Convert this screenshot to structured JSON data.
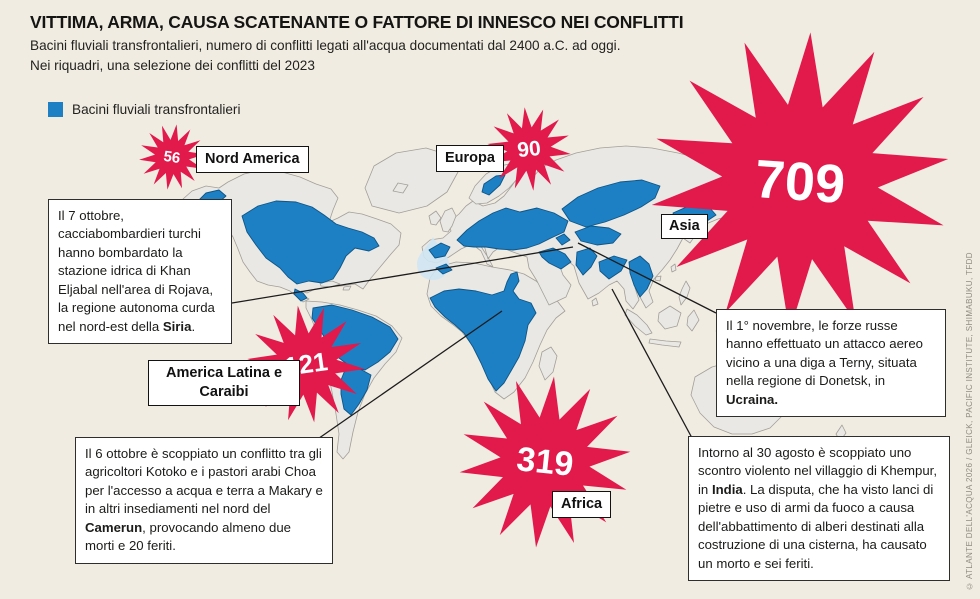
{
  "header": {
    "title": "VITTIMA, ARMA, CAUSA SCATENANTE O FATTORE DI INNESCO NEI CONFLITTI",
    "subtitle1": "Bacini fluviali transfrontalieri, numero di conflitti legati all'acqua documentati dal 2400 a.C. ad oggi.",
    "subtitle2": "Nei riquadri, una selezione dei conflitti del 2023"
  },
  "legend": {
    "label": "Bacini fluviali transfrontalieri"
  },
  "regions": [
    {
      "name": "Nord America",
      "conflicts": "56"
    },
    {
      "name": "Europa",
      "conflicts": "90"
    },
    {
      "name": "Asia",
      "conflicts": "709"
    },
    {
      "name": "America Latina e Caraibi",
      "conflicts": "121"
    },
    {
      "name": "Africa",
      "conflicts": "319"
    }
  ],
  "callouts": {
    "siria": [
      {
        "text": "Il 7 ottobre, cacciabombardieri turchi hanno bombardato la stazione idrica di Khan Eljabal nell'area di Rojava, la regione autonoma curda nel nord-est della "
      },
      {
        "text": "Siria",
        "bold": true
      },
      {
        "text": "."
      }
    ],
    "camerun": [
      {
        "text": "Il 6 ottobre è scoppiato un conflitto tra gli agricoltori Kotoko e i pastori arabi Choa per l'accesso a acqua e terra a Makary e in altri insediamenti nel nord del "
      },
      {
        "text": "Camerun",
        "bold": true
      },
      {
        "text": ", provocando almeno due morti e 20 feriti."
      }
    ],
    "ucraina": [
      {
        "text": "Il 1° novembre, le forze russe hanno effettuato un attacco aereo vicino a una diga a Terny, situata nella regione di Donetsk, in "
      },
      {
        "text": "Ucraina.",
        "bold": true
      }
    ],
    "india": [
      {
        "text": "Intorno al 30 agosto è scoppiato uno scontro violento nel villaggio di Khempur, in "
      },
      {
        "text": "India",
        "bold": true
      },
      {
        "text": ". La disputa, che ha visto lanci di pietre e uso di armi da fuoco a causa dell'abbattimento di alberi destinati alla costruzione di una cisterna, ha causato un morto e sei feriti."
      }
    ]
  },
  "credit": "© ATLANTE DELL'ACQUA 2026 / GLEICK, PACIFIC INSTITUTE, SHIMABUKU, TFDD",
  "colors": {
    "background": "#f1ece2",
    "burst": "#e11a4b",
    "basin": "#1d80c4",
    "basin_stroke": "#0e5586",
    "land": "#e9e8e4",
    "land_stroke": "#a29f98"
  }
}
